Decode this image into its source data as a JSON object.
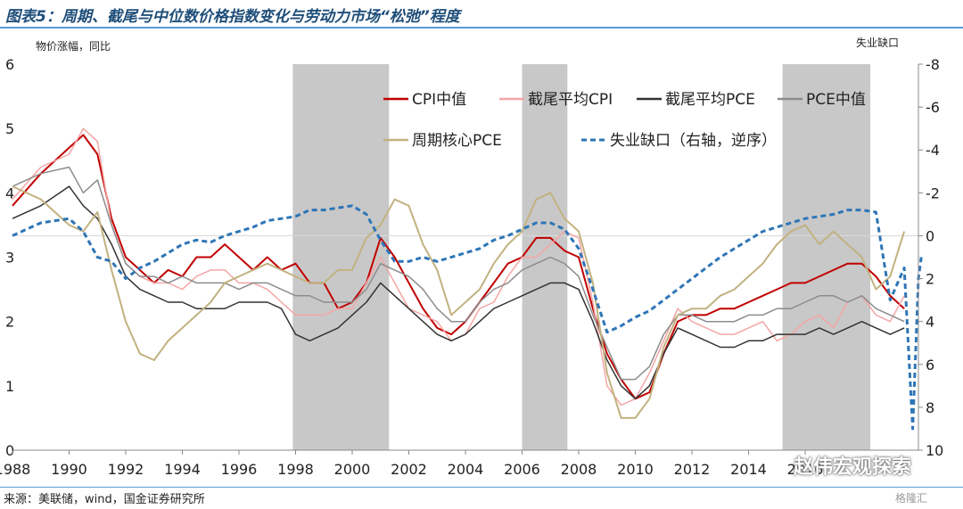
{
  "title": "图表5：周期、截尾与中位数价格指数变化与劳动力市场“松弛”程度",
  "source": "来源：美联储，wind，国金证券研究所",
  "watermark": "赵伟宏观探索",
  "watermark2": "格隆汇",
  "chart_data": {
    "type": "line",
    "ylabel": "物价涨幅，同比",
    "ylabel_right": "失业缺口",
    "ylim": [
      0,
      6
    ],
    "ylim_right": [
      10,
      -8
    ],
    "right_axis_inverted": true,
    "xlim": [
      1988,
      2020
    ],
    "x_ticks": [
      "1988",
      "1990",
      "1992",
      "1994",
      "1996",
      "1998",
      "2000",
      "2002",
      "2004",
      "2006",
      "2008",
      "2010",
      "2012",
      "2014",
      "2016"
    ],
    "y_ticks": [
      "0",
      "1",
      "2",
      "3",
      "4",
      "5",
      "6"
    ],
    "y_ticks_right": [
      "10",
      "8",
      "6",
      "4",
      "2",
      "0",
      "-2",
      "-4",
      "-6",
      "-8"
    ],
    "recessions": [
      [
        1997.9,
        2001.3
      ],
      [
        2006.0,
        2007.6
      ],
      [
        2015.2,
        2018.3
      ]
    ],
    "legend_position": "top",
    "series": [
      {
        "name": "CPI中值",
        "color": "#c00000",
        "dash": "solid",
        "width": 2,
        "axis": "left",
        "x": [
          1988,
          1989,
          1990,
          1990.5,
          1991,
          1991.5,
          1992,
          1992.5,
          1993,
          1993.5,
          1994,
          1994.5,
          1995,
          1995.5,
          1996,
          1996.5,
          1997,
          1997.5,
          1998,
          1998.5,
          1999,
          1999.5,
          2000,
          2000.5,
          2001,
          2001.5,
          2002,
          2002.5,
          2003,
          2003.5,
          2004,
          2004.5,
          2005,
          2005.5,
          2006,
          2006.5,
          2007,
          2007.5,
          2008,
          2008.5,
          2009,
          2009.5,
          2010,
          2010.5,
          2011,
          2011.5,
          2012,
          2012.5,
          2013,
          2013.5,
          2014,
          2014.5,
          2015,
          2015.5,
          2016,
          2016.5,
          2017,
          2017.5,
          2018,
          2018.5,
          2019,
          2019.5
        ],
        "y": [
          3.8,
          4.3,
          4.7,
          4.9,
          4.6,
          3.6,
          3.0,
          2.8,
          2.6,
          2.8,
          2.7,
          3.0,
          3.0,
          3.2,
          3.0,
          2.8,
          3.0,
          2.8,
          2.9,
          2.6,
          2.6,
          2.2,
          2.3,
          2.6,
          3.3,
          3.0,
          2.6,
          2.2,
          1.9,
          1.8,
          2.0,
          2.3,
          2.6,
          2.9,
          3.0,
          3.3,
          3.3,
          3.1,
          3.0,
          2.2,
          1.5,
          1.1,
          0.8,
          0.9,
          1.5,
          2.0,
          2.1,
          2.1,
          2.2,
          2.2,
          2.3,
          2.4,
          2.5,
          2.6,
          2.6,
          2.7,
          2.8,
          2.9,
          2.9,
          2.7,
          2.4,
          2.2
        ]
      },
      {
        "name": "截尾平均CPI",
        "color": "#f4a6a6",
        "dash": "solid",
        "width": 1.5,
        "axis": "left",
        "x": [
          1988,
          1989,
          1990,
          1990.5,
          1991,
          1991.5,
          1992,
          1992.5,
          1993,
          1993.5,
          1994,
          1994.5,
          1995,
          1995.5,
          1996,
          1996.5,
          1997,
          1997.5,
          1998,
          1998.5,
          1999,
          1999.5,
          2000,
          2000.5,
          2001,
          2001.5,
          2002,
          2002.5,
          2003,
          2003.5,
          2004,
          2004.5,
          2005,
          2005.5,
          2006,
          2006.5,
          2007,
          2007.5,
          2008,
          2008.5,
          2009,
          2009.5,
          2010,
          2010.5,
          2011,
          2011.5,
          2012,
          2012.5,
          2013,
          2013.5,
          2014,
          2014.5,
          2015,
          2015.5,
          2016,
          2016.5,
          2017,
          2017.5,
          2018,
          2018.5,
          2019,
          2019.5
        ],
        "y": [
          3.9,
          4.4,
          4.6,
          5.0,
          4.8,
          3.5,
          2.9,
          2.7,
          2.6,
          2.6,
          2.5,
          2.7,
          2.8,
          2.8,
          2.6,
          2.6,
          2.5,
          2.3,
          2.1,
          2.1,
          2.1,
          2.2,
          2.2,
          2.6,
          3.0,
          2.6,
          2.2,
          2.1,
          2.0,
          1.7,
          1.8,
          2.2,
          2.3,
          2.7,
          3.0,
          3.0,
          3.2,
          3.4,
          3.3,
          2.3,
          1.0,
          0.7,
          0.8,
          1.2,
          1.7,
          2.2,
          2.0,
          1.9,
          1.8,
          1.8,
          1.9,
          2.0,
          1.7,
          1.8,
          2.0,
          2.1,
          1.9,
          2.3,
          2.4,
          2.1,
          2.0,
          2.4
        ]
      },
      {
        "name": "截尾平均PCE",
        "color": "#333333",
        "dash": "solid",
        "width": 1.5,
        "axis": "left",
        "x": [
          1988,
          1989,
          1990,
          1990.5,
          1991,
          1991.5,
          1992,
          1992.5,
          1993,
          1993.5,
          1994,
          1994.5,
          1995,
          1995.5,
          1996,
          1996.5,
          1997,
          1997.5,
          1998,
          1998.5,
          1999,
          1999.5,
          2000,
          2000.5,
          2001,
          2001.5,
          2002,
          2002.5,
          2003,
          2003.5,
          2004,
          2004.5,
          2005,
          2005.5,
          2006,
          2006.5,
          2007,
          2007.5,
          2008,
          2008.5,
          2009,
          2009.5,
          2010,
          2010.5,
          2011,
          2011.5,
          2012,
          2012.5,
          2013,
          2013.5,
          2014,
          2014.5,
          2015,
          2015.5,
          2016,
          2016.5,
          2017,
          2017.5,
          2018,
          2018.5,
          2019,
          2019.5
        ],
        "y": [
          3.6,
          3.8,
          4.1,
          3.8,
          3.6,
          3.2,
          2.7,
          2.5,
          2.4,
          2.3,
          2.3,
          2.2,
          2.2,
          2.2,
          2.3,
          2.3,
          2.3,
          2.2,
          1.8,
          1.7,
          1.8,
          1.9,
          2.1,
          2.3,
          2.6,
          2.4,
          2.2,
          2.0,
          1.8,
          1.7,
          1.8,
          2.0,
          2.2,
          2.3,
          2.4,
          2.5,
          2.6,
          2.6,
          2.5,
          2.0,
          1.4,
          1.0,
          0.8,
          1.0,
          1.5,
          1.9,
          1.8,
          1.7,
          1.6,
          1.6,
          1.7,
          1.7,
          1.8,
          1.8,
          1.8,
          1.9,
          1.8,
          1.9,
          2.0,
          1.9,
          1.8,
          1.9
        ]
      },
      {
        "name": "PCE中值",
        "color": "#8c8c8c",
        "dash": "solid",
        "width": 1.5,
        "axis": "left",
        "x": [
          1988,
          1989,
          1990,
          1990.5,
          1991,
          1991.5,
          1992,
          1992.5,
          1993,
          1993.5,
          1994,
          1994.5,
          1995,
          1995.5,
          1996,
          1996.5,
          1997,
          1997.5,
          1998,
          1998.5,
          1999,
          1999.5,
          2000,
          2000.5,
          2001,
          2001.5,
          2002,
          2002.5,
          2003,
          2003.5,
          2004,
          2004.5,
          2005,
          2005.5,
          2006,
          2006.5,
          2007,
          2007.5,
          2008,
          2008.5,
          2009,
          2009.5,
          2010,
          2010.5,
          2011,
          2011.5,
          2012,
          2012.5,
          2013,
          2013.5,
          2014,
          2014.5,
          2015,
          2015.5,
          2016,
          2016.5,
          2017,
          2017.5,
          2018,
          2018.5,
          2019,
          2019.5
        ],
        "y": [
          4.1,
          4.3,
          4.4,
          4.0,
          4.2,
          3.5,
          2.9,
          2.7,
          2.7,
          2.6,
          2.7,
          2.6,
          2.6,
          2.6,
          2.5,
          2.6,
          2.6,
          2.5,
          2.4,
          2.4,
          2.3,
          2.3,
          2.3,
          2.5,
          2.9,
          2.8,
          2.7,
          2.5,
          2.2,
          2.0,
          2.0,
          2.3,
          2.5,
          2.6,
          2.8,
          2.9,
          3.0,
          2.9,
          2.7,
          2.1,
          1.6,
          1.1,
          1.1,
          1.3,
          1.8,
          2.1,
          2.1,
          2.0,
          2.0,
          2.0,
          2.1,
          2.1,
          2.2,
          2.2,
          2.3,
          2.4,
          2.4,
          2.3,
          2.4,
          2.2,
          2.1,
          2.0
        ]
      },
      {
        "name": "周期核心PCE",
        "color": "#c2b280",
        "dash": "solid",
        "width": 2,
        "axis": "left",
        "x": [
          1988,
          1989,
          1990,
          1990.5,
          1991,
          1991.5,
          1992,
          1992.5,
          1993,
          1993.5,
          1994,
          1994.5,
          1995,
          1995.5,
          1996,
          1996.5,
          1997,
          1997.5,
          1998,
          1998.5,
          1999,
          1999.5,
          2000,
          2000.5,
          2001,
          2001.5,
          2002,
          2002.5,
          2003,
          2003.5,
          2004,
          2004.5,
          2005,
          2005.5,
          2006,
          2006.5,
          2007,
          2007.5,
          2008,
          2008.5,
          2009,
          2009.5,
          2010,
          2010.5,
          2011,
          2011.5,
          2012,
          2012.5,
          2013,
          2013.5,
          2014,
          2014.5,
          2015,
          2015.5,
          2016,
          2016.5,
          2017,
          2017.5,
          2018,
          2018.5,
          2019,
          2019.5
        ],
        "y": [
          4.1,
          3.9,
          3.5,
          3.4,
          3.7,
          2.8,
          2.0,
          1.5,
          1.4,
          1.7,
          1.9,
          2.1,
          2.3,
          2.6,
          2.7,
          2.8,
          2.9,
          2.8,
          2.7,
          2.6,
          2.6,
          2.8,
          2.8,
          3.3,
          3.5,
          3.9,
          3.8,
          3.2,
          2.8,
          2.1,
          2.3,
          2.5,
          2.9,
          3.2,
          3.4,
          3.9,
          4.0,
          3.6,
          3.4,
          2.6,
          1.2,
          0.5,
          0.5,
          0.8,
          1.6,
          2.1,
          2.2,
          2.2,
          2.4,
          2.5,
          2.7,
          2.9,
          3.2,
          3.4,
          3.5,
          3.2,
          3.4,
          3.2,
          3.0,
          2.5,
          2.7,
          3.4
        ]
      },
      {
        "name": "失业缺口（右轴，逆序）",
        "color": "#2e75b6",
        "dash": "6,4",
        "width": 3,
        "axis": "right",
        "x": [
          1988,
          1989,
          1990,
          1990.5,
          1991,
          1991.5,
          1992,
          1992.5,
          1993,
          1993.5,
          1994,
          1994.5,
          1995,
          1995.5,
          1996,
          1996.5,
          1997,
          1997.5,
          1998,
          1998.5,
          1999,
          1999.5,
          2000,
          2000.5,
          2001,
          2001.5,
          2002,
          2002.5,
          2003,
          2003.5,
          2004,
          2004.5,
          2005,
          2005.5,
          2006,
          2006.5,
          2007,
          2007.5,
          2008,
          2008.5,
          2009,
          2009.5,
          2010,
          2010.5,
          2011,
          2011.5,
          2012,
          2012.5,
          2013,
          2013.5,
          2014,
          2014.5,
          2015,
          2015.5,
          2016,
          2016.5,
          2017,
          2017.5,
          2018,
          2018.5,
          2019,
          2019.5,
          2019.8,
          2020,
          2020.1
        ],
        "y": [
          0.0,
          -0.6,
          -0.8,
          -0.2,
          1.0,
          1.2,
          2.0,
          1.5,
          1.2,
          0.8,
          0.4,
          0.2,
          0.3,
          0.0,
          -0.2,
          -0.4,
          -0.7,
          -0.8,
          -0.9,
          -1.2,
          -1.2,
          -1.3,
          -1.4,
          -1.0,
          0.2,
          1.2,
          1.2,
          1.0,
          1.2,
          1.0,
          0.8,
          0.6,
          0.2,
          0.0,
          -0.3,
          -0.6,
          -0.6,
          -0.3,
          0.6,
          2.5,
          4.5,
          4.2,
          3.8,
          3.5,
          3.0,
          2.5,
          2.0,
          1.5,
          1.0,
          0.6,
          0.2,
          -0.2,
          -0.4,
          -0.6,
          -0.8,
          -0.9,
          -1.0,
          -1.2,
          -1.2,
          -1.1,
          3.0,
          1.5,
          9.0,
          2.0,
          1.0
        ]
      }
    ]
  }
}
